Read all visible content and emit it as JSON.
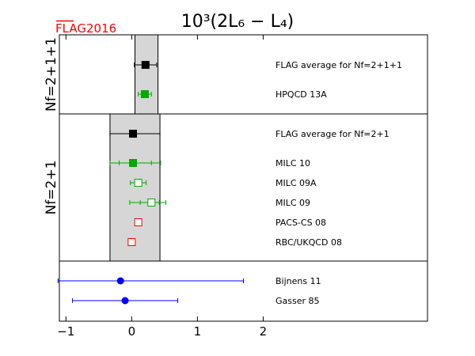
{
  "chart_data": {
    "type": "scatter",
    "title": "10³(2L₆ − L₄)",
    "logo": "FLAG2016",
    "xlim": [
      -1.1,
      4.5
    ],
    "xticks": [
      -1,
      0,
      1,
      2
    ],
    "groups": [
      {
        "label": "Nf=2+1+1",
        "band": [
          0.05,
          0.4
        ],
        "rows": [
          {
            "name": "FLAG average for Nf=2+1+1",
            "value": 0.21,
            "err_low": 0.17,
            "err_high": 0.17,
            "marker": "square-filled",
            "color": "#000000"
          },
          {
            "name": "HPQCD 13A",
            "value": 0.2,
            "err_low": 0.1,
            "err_high": 0.1,
            "marker": "square-filled",
            "color": "#00aa00"
          }
        ]
      },
      {
        "label": "Nf=2+1",
        "band": [
          -0.33,
          0.43
        ],
        "rows": [
          {
            "name": "FLAG average for Nf=2+1",
            "value": 0.02,
            "err_low": 0.35,
            "err_high": 0.41,
            "marker": "square-filled",
            "color": "#000000"
          },
          {
            "name": "MILC 10",
            "value": 0.02,
            "err_low": 0.35,
            "err_high": 0.42,
            "marker": "square-filled",
            "color": "#00aa00",
            "inner_err": [
              0.21,
              0.28
            ]
          },
          {
            "name": "MILC 09A",
            "value": 0.1,
            "err_low": 0.12,
            "err_high": 0.12,
            "marker": "square-open",
            "color": "#00aa00"
          },
          {
            "name": "MILC 09",
            "value": 0.3,
            "err_low": 0.33,
            "err_high": 0.22,
            "marker": "square-open",
            "color": "#00aa00",
            "inner_err": [
              0.17,
              0.12
            ]
          },
          {
            "name": "PACS-CS 08",
            "value": 0.1,
            "err_low": 0,
            "err_high": 0,
            "marker": "square-open",
            "color": "#ff0000"
          },
          {
            "name": "RBC/UKQCD 08",
            "value": 0.0,
            "err_low": 0,
            "err_high": 0,
            "marker": "square-open",
            "color": "#ff0000"
          }
        ]
      },
      {
        "label": "",
        "band": null,
        "rows": [
          {
            "name": "Bijnens 11",
            "value": -0.17,
            "err_low": 0.95,
            "err_high": 1.87,
            "marker": "circle-filled",
            "color": "#0000ff"
          },
          {
            "name": "Gasser 85",
            "value": -0.1,
            "err_low": 0.8,
            "err_high": 0.8,
            "marker": "circle-filled",
            "color": "#0000ff"
          }
        ]
      }
    ]
  }
}
